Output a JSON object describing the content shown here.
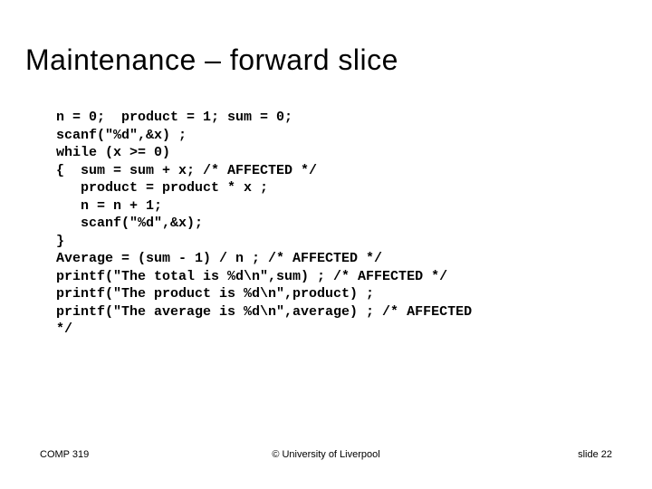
{
  "title": "Maintenance – forward slice",
  "code": "n = 0;  product = 1; sum = 0;\nscanf(\"%d\",&x) ;\nwhile (x >= 0)\n{  sum = sum + x; /* AFFECTED */\n   product = product * x ;\n   n = n + 1;\n   scanf(\"%d\",&x);\n}\nAverage = (sum - 1) / n ; /* AFFECTED */\nprintf(\"The total is %d\\n\",sum) ; /* AFFECTED */\nprintf(\"The product is %d\\n\",product) ;\nprintf(\"The average is %d\\n\",average) ; /* AFFECTED\n*/",
  "footer": {
    "left": "COMP 319",
    "center": "© University of Liverpool",
    "right": "slide  22"
  },
  "styles": {
    "title_fontsize": 32,
    "title_color": "#000000",
    "code_fontsize": 15,
    "code_fontweight": "bold",
    "code_color": "#000000",
    "footer_fontsize": 11,
    "background_color": "#ffffff"
  }
}
